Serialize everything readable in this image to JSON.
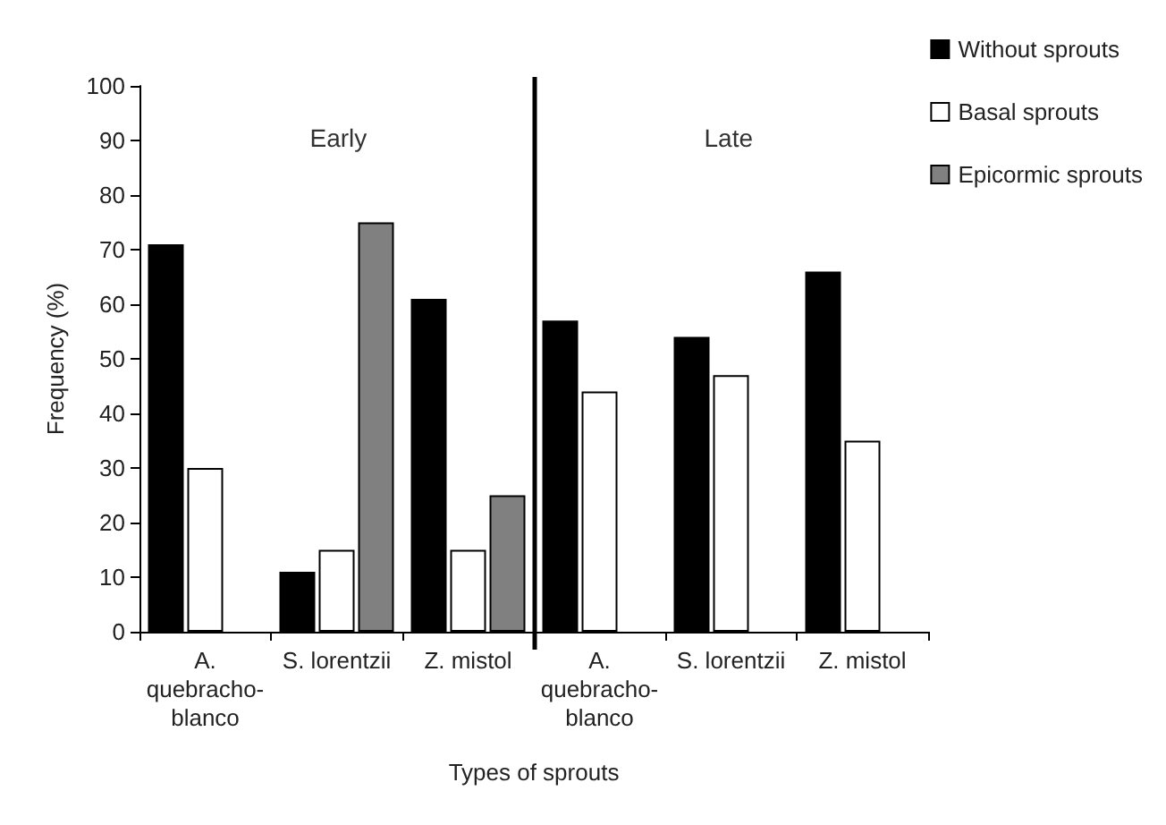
{
  "chart_data": {
    "type": "bar",
    "xlabel": "Types of sprouts",
    "ylabel": "Frequency (%)",
    "categories": [
      "A. quebracho-blanco",
      "S. lorentzii",
      "Z. mistol",
      "A. quebracho-blanco",
      "S. lorentzii",
      "Z. mistol"
    ],
    "series": [
      {
        "name": "Without sprouts",
        "color": "#000000",
        "values": [
          71,
          11,
          61,
          57,
          54,
          66
        ]
      },
      {
        "name": "Basal sprouts",
        "color": "#ffffff",
        "values": [
          30,
          15,
          15,
          44,
          47,
          35
        ]
      },
      {
        "name": "Epicormic sprouts",
        "color": "#808080",
        "values": [
          null,
          75,
          25,
          null,
          null,
          null
        ]
      }
    ],
    "ylim": [
      0,
      100
    ],
    "yticks": [
      0,
      10,
      20,
      30,
      40,
      50,
      60,
      70,
      80,
      90,
      100
    ],
    "annotations": [
      "Early",
      "Late"
    ],
    "grid": false,
    "legend": "top right"
  }
}
